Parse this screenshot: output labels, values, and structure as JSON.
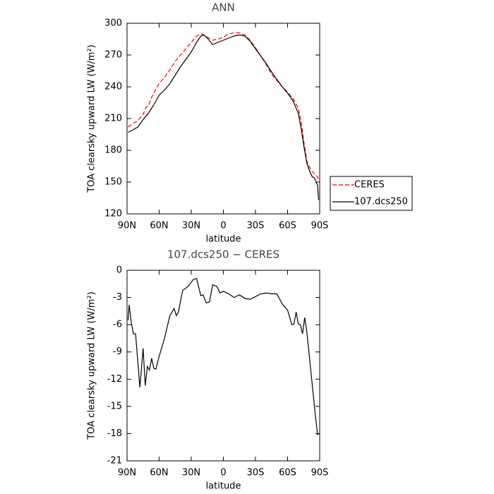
{
  "chart_data": [
    {
      "type": "line",
      "title": "ANN",
      "xlabel": "latitude",
      "ylabel": "TOA clearsky upward LW (W/m²)",
      "xlim": [
        90,
        -90
      ],
      "xticks": [
        {
          "value": 90,
          "label": "90N"
        },
        {
          "value": 60,
          "label": "60N"
        },
        {
          "value": 30,
          "label": "30N"
        },
        0,
        {
          "value": -30,
          "label": "30S"
        },
        {
          "value": -60,
          "label": "60S"
        },
        {
          "value": -90,
          "label": "90S"
        }
      ],
      "ylim": [
        120,
        300
      ],
      "yticks": [
        120,
        150,
        180,
        210,
        240,
        270,
        300
      ],
      "legend": "right",
      "series": [
        {
          "name": "CERES",
          "color": "#ff0000",
          "dash": true,
          "x": [
            89,
            85,
            80,
            75,
            72,
            70,
            67,
            63,
            60,
            55,
            50,
            45,
            40,
            35,
            30,
            25,
            21,
            18,
            15,
            10,
            5,
            0,
            -5,
            -10,
            -15,
            -20,
            -25,
            -30,
            -35,
            -40,
            -45,
            -50,
            -55,
            -60,
            -65,
            -70,
            -73,
            -75,
            -78,
            -80,
            -83,
            -85,
            -88,
            -89
          ],
          "values": [
            202,
            205,
            208,
            214,
            221,
            222,
            230,
            238,
            243,
            249,
            256,
            264,
            270,
            276,
            282,
            288,
            290,
            289,
            287,
            284,
            285,
            287,
            290,
            291,
            291,
            289,
            284,
            277,
            269,
            261,
            252,
            246,
            240,
            235,
            229,
            220,
            205,
            189,
            170,
            165,
            160,
            158,
            155,
            151
          ]
        },
        {
          "name": "107.dcs250",
          "color": "#000000",
          "dash": false,
          "x": [
            89,
            85,
            80,
            75,
            70,
            65,
            60,
            55,
            50,
            45,
            40,
            35,
            30,
            25,
            21,
            18,
            15,
            10,
            5,
            0,
            -5,
            -10,
            -15,
            -20,
            -25,
            -30,
            -35,
            -40,
            -45,
            -50,
            -55,
            -60,
            -65,
            -70,
            -73,
            -75,
            -78,
            -80,
            -83,
            -85,
            -88,
            -89
          ],
          "values": [
            197,
            199,
            202,
            209,
            215,
            223,
            232,
            237,
            243,
            251,
            259,
            266,
            273,
            282,
            288,
            289,
            286,
            280,
            282,
            284,
            286,
            288,
            289,
            288,
            283,
            276,
            269,
            262,
            254,
            247,
            240,
            234,
            227,
            215,
            199,
            185,
            168,
            162,
            155,
            154,
            147,
            133
          ]
        }
      ]
    },
    {
      "type": "line",
      "title": "107.dcs250 − CERES",
      "xlabel": "latitude",
      "ylabel": "TOA clearsky upward LW (W/m²)",
      "xlim": [
        90,
        -90
      ],
      "xticks": [
        {
          "value": 90,
          "label": "90N"
        },
        {
          "value": 60,
          "label": "60N"
        },
        {
          "value": 30,
          "label": "30N"
        },
        0,
        {
          "value": -30,
          "label": "30S"
        },
        {
          "value": -60,
          "label": "60S"
        },
        {
          "value": -90,
          "label": "90S"
        }
      ],
      "ylim": [
        -21,
        0
      ],
      "yticks": [
        -21,
        -18,
        -15,
        -12,
        -9,
        -6,
        -3,
        0
      ],
      "series": [
        {
          "color": "#000000",
          "dash": false,
          "x": [
            89,
            88,
            86,
            84,
            82,
            78,
            75,
            73,
            71,
            69,
            67,
            65,
            63,
            60,
            55,
            50,
            46,
            44,
            42,
            38,
            33,
            28,
            25,
            21,
            19,
            16,
            13,
            10,
            6,
            3,
            0,
            -5,
            -10,
            -15,
            -20,
            -25,
            -30,
            -35,
            -40,
            -45,
            -50,
            -55,
            -60,
            -64,
            -66,
            -68,
            -70,
            -72,
            -74,
            -76,
            -78,
            -86,
            -88,
            -89
          ],
          "values": [
            -5.5,
            -3.8,
            -5.8,
            -7,
            -7,
            -12.9,
            -8.6,
            -12.7,
            -10.6,
            -11,
            -9.7,
            -10.8,
            -10.9,
            -9.5,
            -7.5,
            -5,
            -4.2,
            -5,
            -4.6,
            -2.2,
            -1.8,
            -1,
            -0.9,
            -2.8,
            -2.7,
            -3.6,
            -3.5,
            -1.6,
            -1.8,
            -2.5,
            -2.3,
            -2.6,
            -3,
            -2.7,
            -3.1,
            -3.2,
            -2.9,
            -2.6,
            -2.5,
            -2.6,
            -2.6,
            -3.7,
            -4.4,
            -6,
            -5.9,
            -4.6,
            -5.9,
            -6,
            -7,
            -5.2,
            -6.8,
            -16,
            -18.1,
            -18.1
          ]
        }
      ]
    }
  ]
}
